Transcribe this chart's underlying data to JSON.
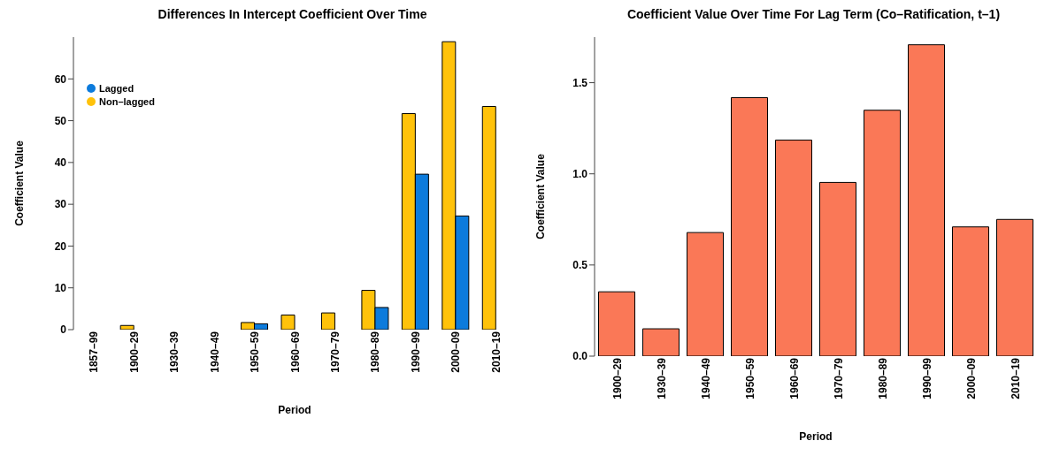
{
  "chart_data": [
    {
      "type": "bar",
      "title": "Differences In Intercept Coefficient Over Time",
      "xlabel": "Period",
      "ylabel": "Coefficient Value",
      "categories": [
        "1857–99",
        "1900–29",
        "1930–39",
        "1940–49",
        "1950–59",
        "1960–69",
        "1970–79",
        "1980–89",
        "1990–99",
        "2000–09",
        "2010–19"
      ],
      "series": [
        {
          "name": "Non–lagged",
          "color": "#ffc20a",
          "values": [
            0,
            1.0,
            0,
            0,
            1.7,
            3.5,
            4.0,
            9.4,
            51.7,
            68.9,
            53.4
          ]
        },
        {
          "name": "Lagged",
          "color": "#0c7bdc",
          "values": [
            0,
            0,
            0,
            0,
            1.4,
            0,
            0,
            5.3,
            37.2,
            27.2,
            0
          ]
        }
      ],
      "ylim": [
        0,
        70
      ],
      "yticks": [
        0,
        10,
        20,
        30,
        40,
        50,
        60
      ],
      "grid": false,
      "legend": "top left",
      "marker": "circle"
    },
    {
      "type": "bar",
      "title": "Coefficient Value Over Time For Lag Term (Co–Ratification, t–1)",
      "xlabel": "Period",
      "ylabel": "Coefficient Value",
      "categories": [
        "1900–29",
        "1930–39",
        "1940–49",
        "1950–59",
        "1960–69",
        "1970–79",
        "1980–89",
        "1990–99",
        "2000–09",
        "2010–19"
      ],
      "series": [
        {
          "color": "#fa7857",
          "values": [
            0.353,
            0.15,
            0.678,
            1.418,
            1.185,
            0.953,
            1.349,
            1.708,
            0.709,
            0.75
          ]
        }
      ],
      "ylim": [
        0,
        1.75
      ],
      "yticks": [
        {
          "value": 0,
          "label": "0.0"
        },
        0.5,
        {
          "value": 1,
          "label": "1.0"
        },
        1.5
      ],
      "grid": false,
      "legend": false
    }
  ]
}
